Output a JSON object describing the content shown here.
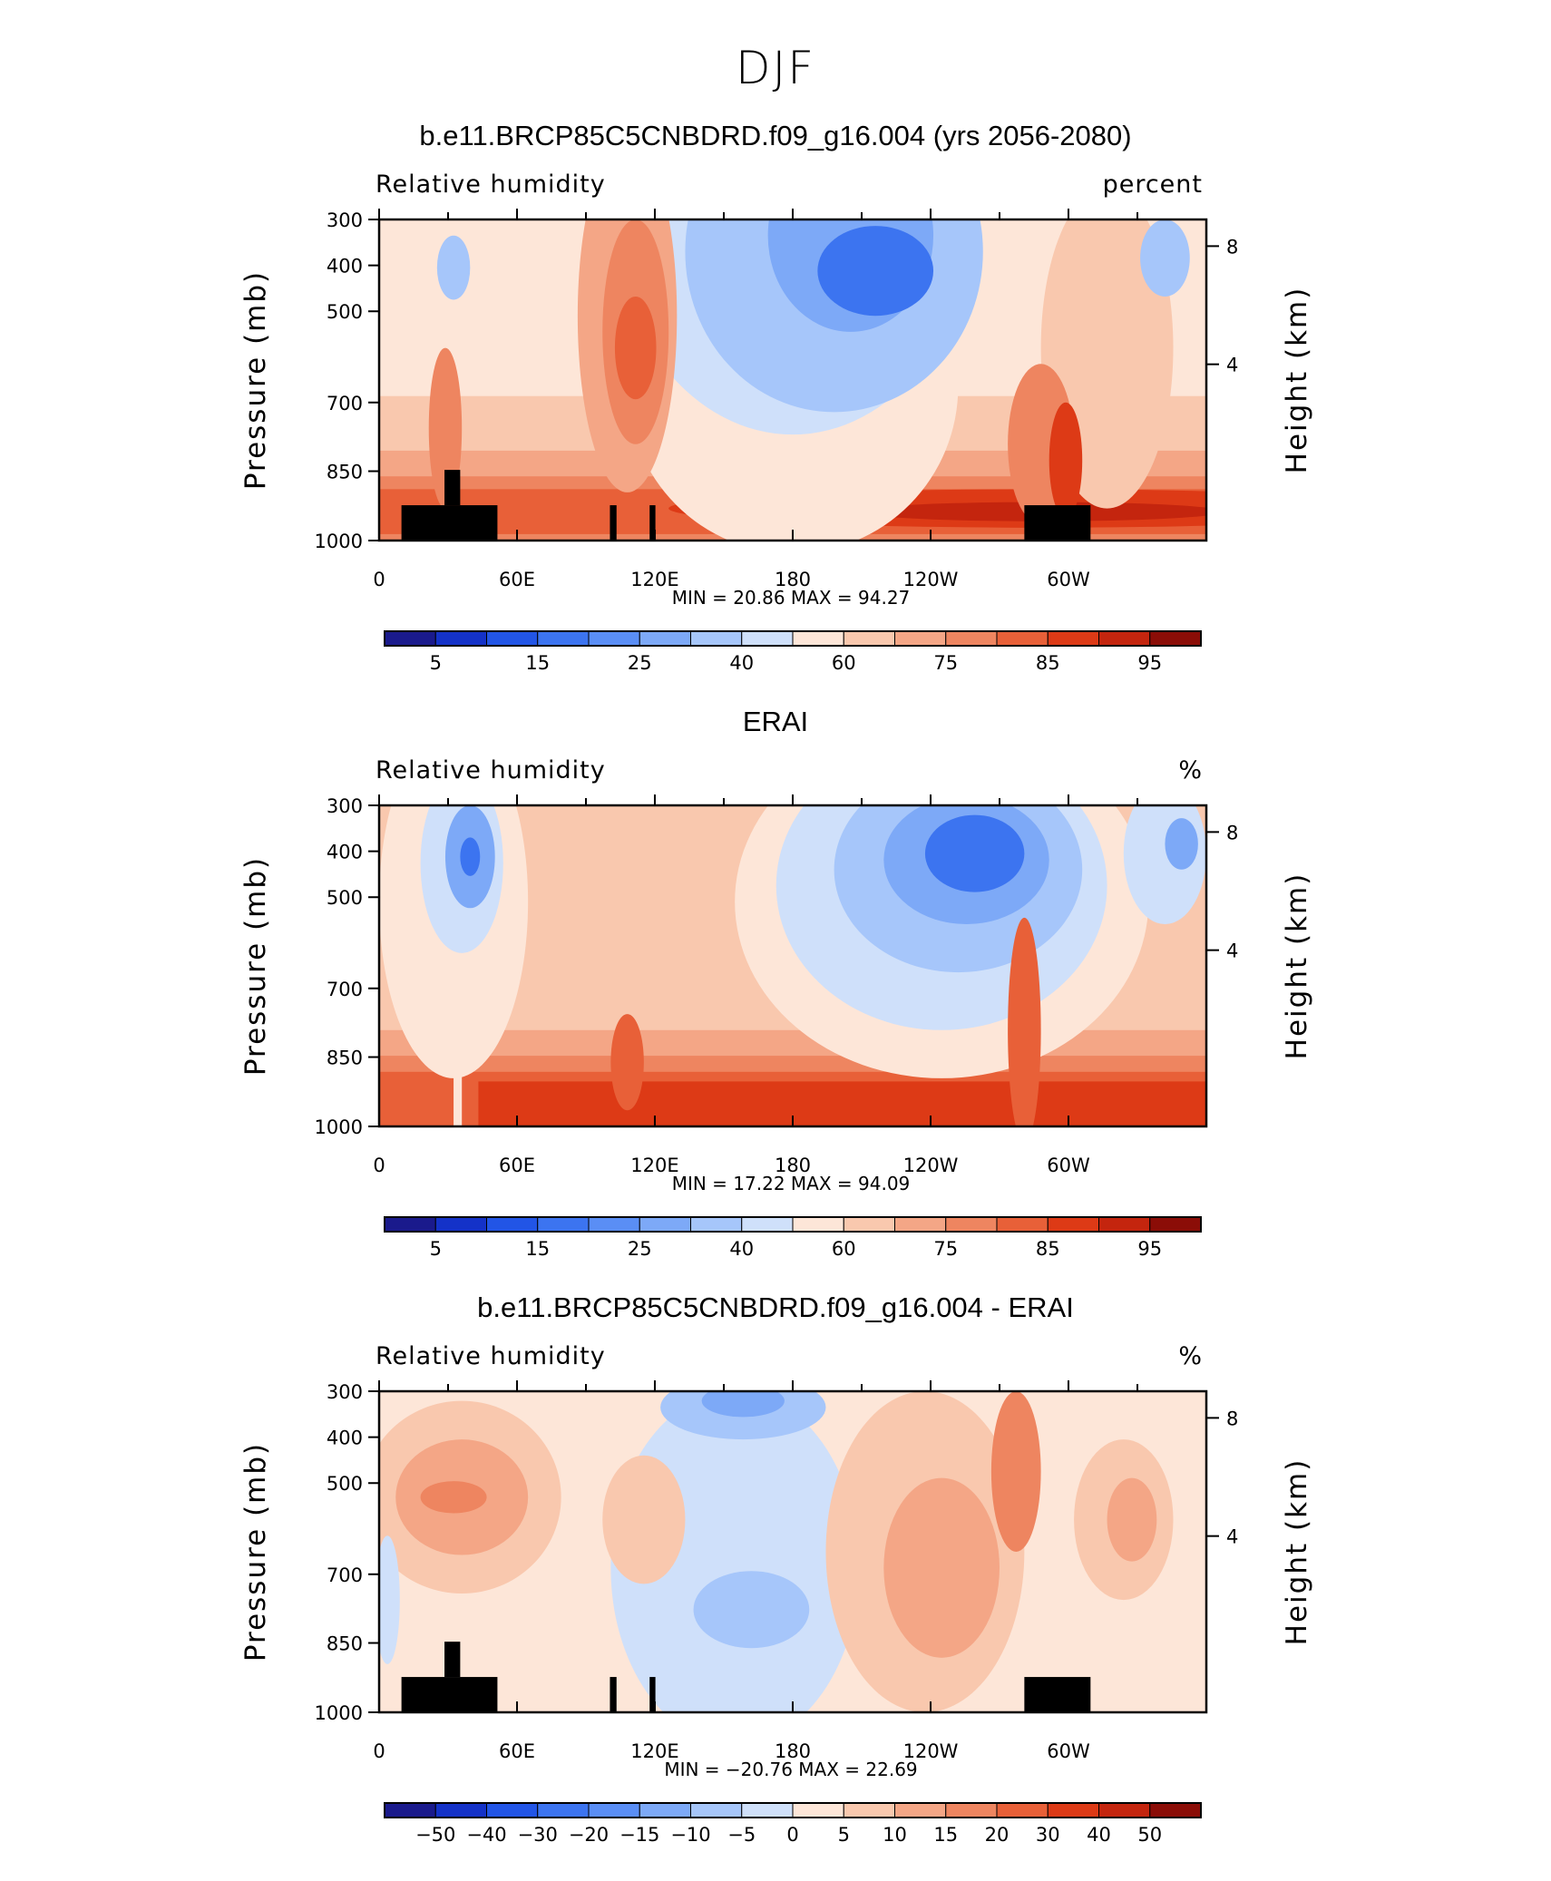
{
  "main_title": "DJF",
  "colors": {
    "scale": [
      "#1a1a8c",
      "#1432c8",
      "#2255e6",
      "#3c74f0",
      "#5a8ef5",
      "#7da9f7",
      "#a6c6fa",
      "#cfe0fa",
      "#fde6d8",
      "#f9c8ae",
      "#f4a686",
      "#ee8560",
      "#e86038",
      "#dd3a16",
      "#c4250e",
      "#8b0d07"
    ],
    "topography": "#000000"
  },
  "chart_data": [
    {
      "type": "heatmap",
      "title": "b.e11.BRCP85C5CNBDRD.f09_g16.004 (yrs 2056-2080)",
      "left_label": "Relative humidity",
      "right_label": "percent",
      "ylabel": "Pressure (mb)",
      "y2label": "Height (km)",
      "x_tick_labels": [
        "0",
        "60E",
        "120E",
        "180",
        "120W",
        "60W"
      ],
      "y_tick_labels": [
        "300",
        "400",
        "500",
        "700",
        "850",
        "1000"
      ],
      "y2_tick_labels": [
        "8",
        "4"
      ],
      "stats": "MIN =   20.86   MAX =   94.27",
      "colorbar_labels": [
        "5",
        "15",
        "25",
        "40",
        "60",
        "75",
        "85",
        "95"
      ],
      "levels": [
        5,
        10,
        15,
        20,
        25,
        30,
        35,
        40,
        50,
        55,
        60,
        65,
        70,
        75,
        80,
        85,
        90,
        95
      ],
      "min": 20.86,
      "max": 94.27,
      "topography": true
    },
    {
      "type": "heatmap",
      "title": "ERAI",
      "left_label": "Relative humidity",
      "right_label": "%",
      "ylabel": "Pressure (mb)",
      "y2label": "Height (km)",
      "x_tick_labels": [
        "0",
        "60E",
        "120E",
        "180",
        "120W",
        "60W"
      ],
      "y_tick_labels": [
        "300",
        "400",
        "500",
        "700",
        "850",
        "1000"
      ],
      "y2_tick_labels": [
        "8",
        "4"
      ],
      "stats": "MIN =   17.22   MAX =   94.09",
      "colorbar_labels": [
        "5",
        "15",
        "25",
        "40",
        "60",
        "75",
        "85",
        "95"
      ],
      "min": 17.22,
      "max": 94.09,
      "topography": false
    },
    {
      "type": "heatmap",
      "title": "b.e11.BRCP85C5CNBDRD.f09_g16.004 - ERAI",
      "left_label": "Relative humidity",
      "right_label": "%",
      "ylabel": "Pressure (mb)",
      "y2label": "Height (km)",
      "x_tick_labels": [
        "0",
        "60E",
        "120E",
        "180",
        "120W",
        "60W"
      ],
      "y_tick_labels": [
        "300",
        "400",
        "500",
        "700",
        "850",
        "1000"
      ],
      "y2_tick_labels": [
        "8",
        "4"
      ],
      "stats": "MIN = −20.76   MAX =   22.69",
      "colorbar_labels": [
        "−50",
        "−40",
        "−30",
        "−20",
        "−15",
        "−10",
        "−5",
        "0",
        "5",
        "10",
        "15",
        "20",
        "30",
        "40",
        "50"
      ],
      "min": -20.76,
      "max": 22.69,
      "topography": true
    }
  ]
}
